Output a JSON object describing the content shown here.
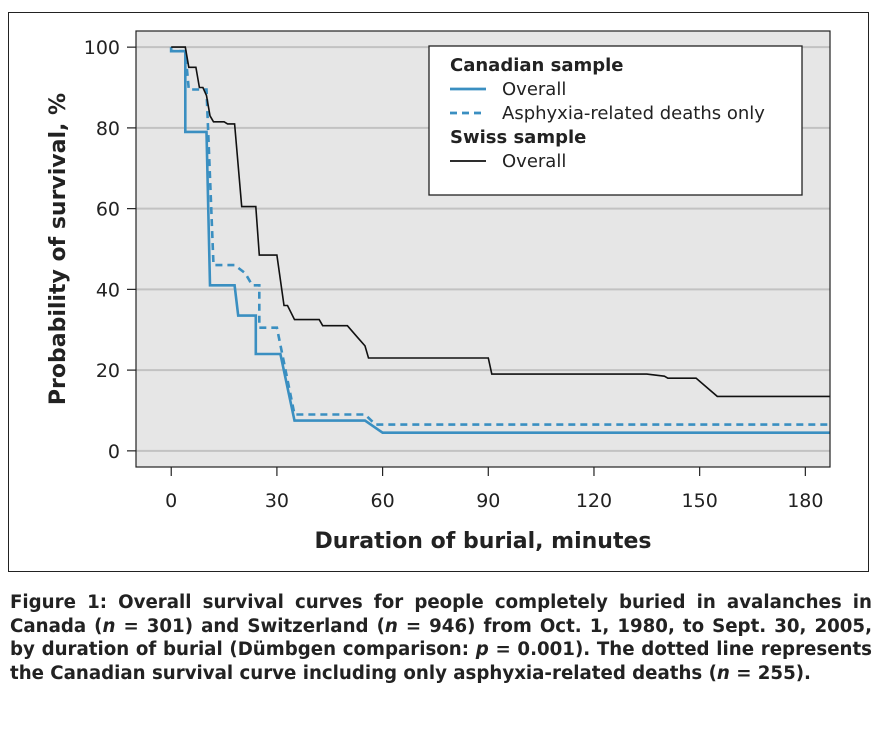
{
  "chart_data": {
    "type": "line",
    "xlabel": "Duration of burial, minutes",
    "ylabel": "Probability of survival, %",
    "xlim": [
      -10,
      187
    ],
    "ylim": [
      -4,
      104
    ],
    "x_ticks": [
      0,
      30,
      60,
      90,
      120,
      150,
      180
    ],
    "y_ticks": [
      0,
      20,
      40,
      60,
      80,
      100
    ],
    "grid": "horizontal",
    "legend": {
      "placement": "top-right",
      "groups": [
        {
          "title": "Canadian sample",
          "entries": [
            {
              "label": "Overall",
              "series": 0
            },
            {
              "label": "Asphyxia-related deaths only",
              "series": 1
            }
          ]
        },
        {
          "title": "Swiss sample",
          "entries": [
            {
              "label": "Overall",
              "series": 2
            }
          ]
        }
      ]
    },
    "series": [
      {
        "name": "Canadian sample – Overall",
        "color": "#3a8fc1",
        "dash": "solid",
        "points": [
          [
            0,
            100
          ],
          [
            0,
            99
          ],
          [
            4,
            99
          ],
          [
            4,
            79
          ],
          [
            10,
            79
          ],
          [
            11,
            41
          ],
          [
            18,
            41
          ],
          [
            19,
            33.5
          ],
          [
            24,
            33.5
          ],
          [
            24,
            24
          ],
          [
            31,
            24
          ],
          [
            35,
            7.5
          ],
          [
            55,
            7.5
          ],
          [
            60,
            4.5
          ],
          [
            187,
            4.5
          ]
        ]
      },
      {
        "name": "Canadian sample – Asphyxia-related deaths only",
        "color": "#3a8fc1",
        "dash": "dashed",
        "points": [
          [
            0,
            100
          ],
          [
            0,
            99
          ],
          [
            4,
            99
          ],
          [
            5,
            89.5
          ],
          [
            10,
            89.5
          ],
          [
            12,
            46
          ],
          [
            18,
            46
          ],
          [
            21,
            44
          ],
          [
            23,
            41
          ],
          [
            25,
            41
          ],
          [
            25,
            30.5
          ],
          [
            30,
            30.5
          ],
          [
            35,
            9
          ],
          [
            55,
            9
          ],
          [
            58,
            6.5
          ],
          [
            187,
            6.5
          ]
        ]
      },
      {
        "name": "Swiss sample – Overall",
        "color": "#111111",
        "dash": "solid",
        "points": [
          [
            0,
            100
          ],
          [
            4,
            100
          ],
          [
            5,
            95
          ],
          [
            7,
            95
          ],
          [
            8,
            90
          ],
          [
            9,
            90
          ],
          [
            10,
            88
          ],
          [
            11,
            83
          ],
          [
            12,
            81.5
          ],
          [
            15,
            81.5
          ],
          [
            16,
            81
          ],
          [
            18,
            81
          ],
          [
            20,
            60.5
          ],
          [
            24,
            60.5
          ],
          [
            25,
            48.5
          ],
          [
            30,
            48.5
          ],
          [
            32,
            36
          ],
          [
            33,
            36
          ],
          [
            35,
            32.5
          ],
          [
            42,
            32.5
          ],
          [
            43,
            31
          ],
          [
            50,
            31
          ],
          [
            53,
            28
          ],
          [
            55,
            26
          ],
          [
            56,
            23
          ],
          [
            85,
            23
          ],
          [
            90,
            23
          ],
          [
            91,
            19
          ],
          [
            135,
            19
          ],
          [
            140,
            18.5
          ],
          [
            141,
            18
          ],
          [
            149,
            18
          ],
          [
            155,
            13.5
          ],
          [
            187,
            13.5
          ]
        ]
      }
    ]
  },
  "caption": {
    "p1": "Figure 1: Overall survival curves for people completely buried in avalanches in Canada (",
    "n1": "n",
    "p2": " = 301) and Switzerland (",
    "n2": "n",
    "p3": " = 946) from Oct. 1, 1980, to Sept. 30, 2005, by duration of burial (Dümbgen comparison: ",
    "pp": "p",
    "p4": " = 0.001). The dotted line represents the Canadian survival curve including only asphyxia-related deaths (",
    "n3": "n",
    "p5": " = 255)."
  }
}
